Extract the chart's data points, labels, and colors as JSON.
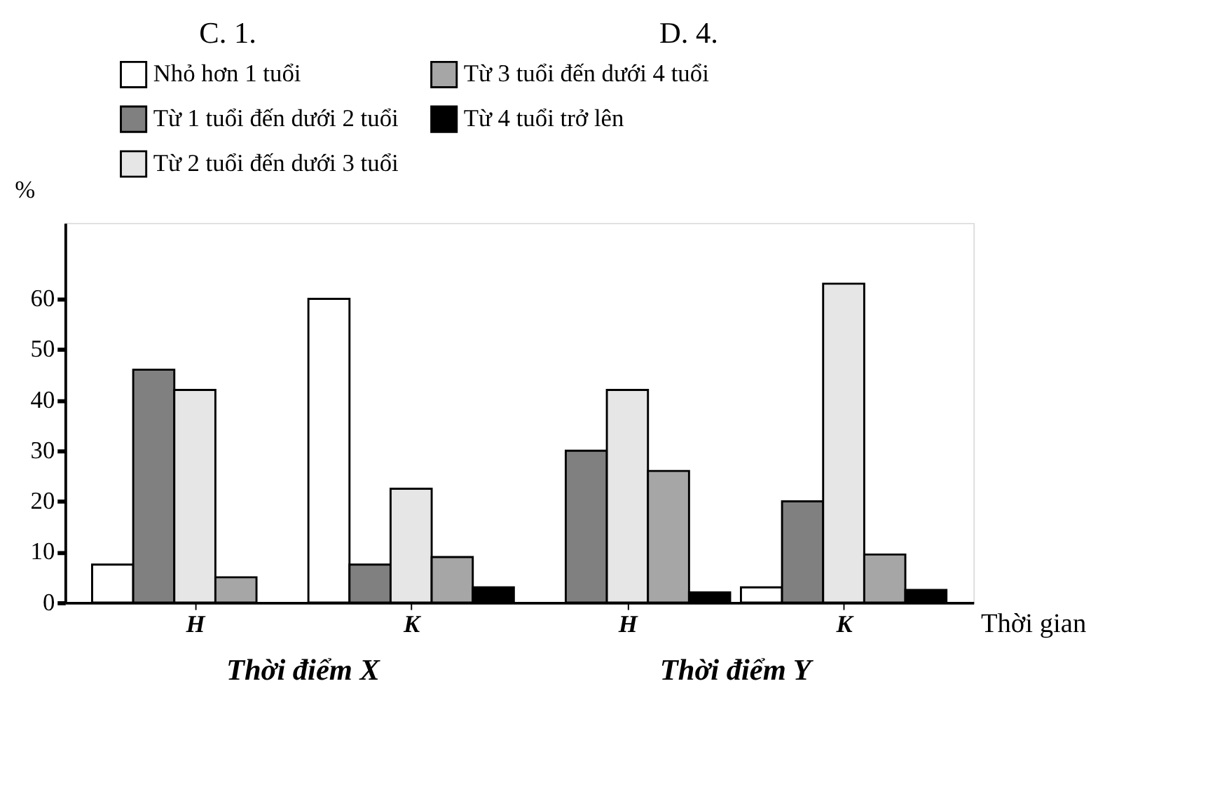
{
  "chart_data": {
    "type": "bar",
    "categories": [
      "H",
      "K",
      "H",
      "K"
    ],
    "series": [
      {
        "name": "Nhỏ hơn 1 tuổi",
        "color": "#ffffff",
        "values": [
          7.5,
          60,
          null,
          3
        ]
      },
      {
        "name": "Từ 1 tuổi đến dưới 2 tuổi",
        "color": "#808080",
        "values": [
          46,
          7.5,
          30,
          20
        ]
      },
      {
        "name": "Từ 2 tuổi đến dưới 3 tuổi",
        "color": "#e6e6e6",
        "values": [
          42,
          22.5,
          42,
          63
        ]
      },
      {
        "name": "Từ 3 tuổi đến dưới 4 tuổi",
        "color": "#a6a6a6",
        "values": [
          5,
          9,
          26,
          9.5
        ]
      },
      {
        "name": "Từ 4 tuổi trở lên",
        "color": "#000000",
        "values": [
          null,
          3,
          2,
          2.5
        ]
      }
    ],
    "xlabel": "Thời gian",
    "ylabel": "%",
    "ylim": [
      0,
      75
    ],
    "yticks": [
      0,
      10,
      20,
      30,
      40,
      50,
      60
    ],
    "grid": false,
    "legend": "top",
    "annotations": [
      "C. 1.",
      "D. 4.",
      "Thời điểm X",
      "Thời điểm Y"
    ]
  }
}
